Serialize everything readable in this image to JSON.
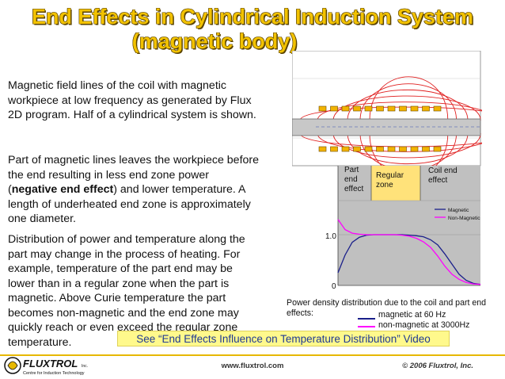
{
  "title": {
    "line1": "End Effects in Cylindrical Induction System",
    "line2": "(magnetic body)"
  },
  "text": {
    "para1": "Magnetic field lines of the coil with magnetic workpiece at low frequency as generated by Flux 2D program. Half of a cylindrical system is shown.",
    "para2_start": "Part of magnetic lines leaves the workpiece before the end resulting in less end zone power (",
    "para2_bold": "negative end effect",
    "para2_end": ") and lower temperature. A length of underheated end zone is approximately one diameter.",
    "para3": "Distribution of power and temperature along the part may change in the process of heating. For example, temperature of the part end may be lower than in a regular zone when the part is magnetic. Above Curie temperature the part becomes non-magnetic and the end zone may quickly reach or even exceed the regular zone temperature."
  },
  "figure": {
    "zone_part_end": [
      "Part",
      "end",
      "effect"
    ],
    "zone_regular": [
      "Regular",
      "zone"
    ],
    "zone_coil_end": [
      "Coil end",
      "effect"
    ],
    "legend_magnetic": "Magnetic",
    "legend_nonmagnetic": "Non-Magnetic",
    "tick_1": "1.0",
    "tick_0": "0",
    "colors": {
      "field_lines": "#e02020",
      "coil_turn": "#f2b400",
      "workpiece": "#c8c8c8",
      "plot_bg": "#c0c0c0",
      "regular_zone": "#ffe27a",
      "magnetic_curve": "#1a1f8a",
      "nonmagnetic_curve": "#ff00ff"
    }
  },
  "chart_data": {
    "type": "line",
    "title": "",
    "xlabel": "",
    "ylabel": "",
    "ylim": [
      0,
      1.35
    ],
    "x": [
      0,
      0.05,
      0.1,
      0.15,
      0.2,
      0.25,
      0.3,
      0.35,
      0.4,
      0.45,
      0.5,
      0.55,
      0.6,
      0.65,
      0.7,
      0.75,
      0.8,
      0.85,
      0.9,
      0.95,
      1.0
    ],
    "series": [
      {
        "name": "Magnetic",
        "values": [
          0.25,
          0.6,
          0.85,
          0.95,
          0.99,
          1.0,
          1.0,
          1.0,
          1.0,
          1.0,
          0.99,
          0.98,
          0.96,
          0.9,
          0.8,
          0.62,
          0.42,
          0.22,
          0.1,
          0.04,
          0.02
        ]
      },
      {
        "name": "Non-Magnetic",
        "values": [
          1.3,
          1.1,
          1.03,
          1.01,
          1.0,
          1.0,
          1.0,
          1.0,
          1.0,
          0.99,
          0.97,
          0.93,
          0.86,
          0.75,
          0.58,
          0.38,
          0.22,
          0.12,
          0.06,
          0.03,
          0.02
        ]
      }
    ]
  },
  "caption": {
    "text": "Power density distribution due to the coil and part end effects:",
    "magnetic": "magnetic at 60 Hz",
    "nonmagnetic": "non-magnetic at 3000Hz"
  },
  "banner": "See “End Effects Influence on Temperature Distribution” Video",
  "footer": {
    "logo_text": "FLUXTROL",
    "logo_inc": "Inc.",
    "logo_tagline": "Centre for Induction Technology",
    "url": "www.fluxtrol.com",
    "copyright": "© 2006 Fluxtrol, Inc."
  }
}
